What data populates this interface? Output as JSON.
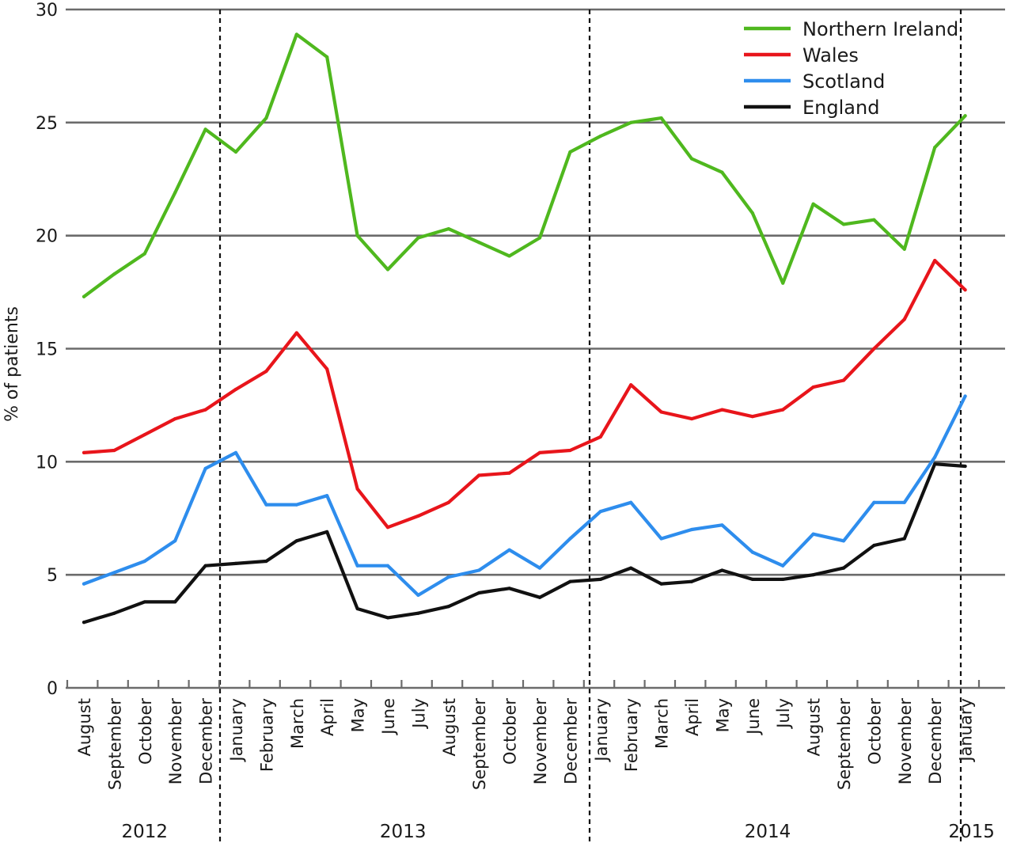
{
  "chart_data": {
    "type": "line",
    "title": "",
    "xlabel": "",
    "ylabel": "% of patients",
    "ylim": [
      0,
      30
    ],
    "yticks": [
      0,
      5,
      10,
      15,
      20,
      25,
      30
    ],
    "grid": true,
    "legend_position": "top-right",
    "categories": [
      "August",
      "September",
      "October",
      "November",
      "December",
      "January",
      "February",
      "March",
      "April",
      "May",
      "June",
      "July",
      "August",
      "September",
      "October",
      "November",
      "December",
      "January",
      "February",
      "March",
      "April",
      "May",
      "June",
      "July",
      "August",
      "September",
      "October",
      "November",
      "December",
      "January"
    ],
    "years": [
      {
        "label": "2012",
        "start": 0,
        "end": 4
      },
      {
        "label": "2013",
        "start": 5,
        "end": 16
      },
      {
        "label": "2014",
        "start": 17,
        "end": 28
      },
      {
        "label": "2015",
        "start": 29,
        "end": 29
      }
    ],
    "series": [
      {
        "name": "Northern Ireland",
        "color": "#4fb81e",
        "values": [
          17.3,
          18.3,
          19.2,
          21.9,
          24.7,
          23.7,
          25.2,
          28.9,
          27.9,
          20.0,
          18.5,
          19.9,
          20.3,
          19.7,
          19.1,
          19.9,
          23.7,
          24.4,
          25.0,
          25.2,
          23.4,
          22.8,
          21.0,
          17.9,
          21.4,
          20.5,
          20.7,
          19.4,
          23.9,
          25.3
        ]
      },
      {
        "name": "Wales",
        "color": "#e8151b",
        "values": [
          10.4,
          10.5,
          11.2,
          11.9,
          12.3,
          13.2,
          14.0,
          15.7,
          14.1,
          8.8,
          7.1,
          7.6,
          8.2,
          9.4,
          9.5,
          10.4,
          10.5,
          11.1,
          13.4,
          12.2,
          11.9,
          12.3,
          12.0,
          12.3,
          13.3,
          13.6,
          15.0,
          16.3,
          18.9,
          17.6
        ]
      },
      {
        "name": "Scotland",
        "color": "#2e8ded",
        "values": [
          4.6,
          5.1,
          5.6,
          6.5,
          9.7,
          10.4,
          8.1,
          8.1,
          8.5,
          5.4,
          5.4,
          4.1,
          4.9,
          5.2,
          6.1,
          5.3,
          6.6,
          7.8,
          8.2,
          6.6,
          7.0,
          7.2,
          6.0,
          5.4,
          6.8,
          6.5,
          8.2,
          8.2,
          10.2,
          12.9
        ]
      },
      {
        "name": "England",
        "color": "#111111",
        "values": [
          2.9,
          3.3,
          3.8,
          3.8,
          5.4,
          5.5,
          5.6,
          6.5,
          6.9,
          3.5,
          3.1,
          3.3,
          3.6,
          4.2,
          4.4,
          4.0,
          4.7,
          4.8,
          5.3,
          4.6,
          4.7,
          5.2,
          4.8,
          4.8,
          5.0,
          5.3,
          6.3,
          6.6,
          9.9,
          9.8
        ]
      }
    ]
  }
}
